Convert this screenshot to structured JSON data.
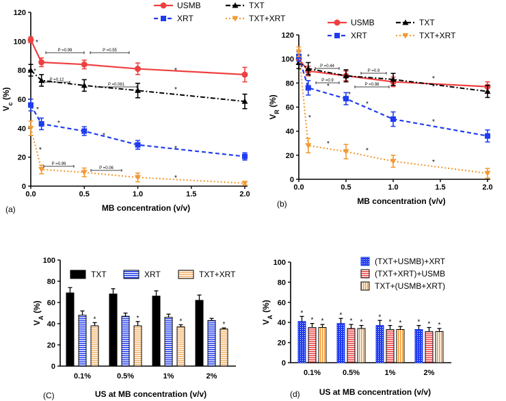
{
  "colors": {
    "red": "#ee4040",
    "black": "#000000",
    "blue": "#1f3cf0",
    "orange": "#f29a33",
    "light_orange": "#f7c184"
  },
  "chart_data": [
    {
      "panel": "(a)",
      "type": "line",
      "xlabel": "MB concentration (v/v)",
      "ylabel": "Vc (%)",
      "xlim": [
        0,
        2
      ],
      "ylim": [
        0,
        120
      ],
      "xticks": [
        "0.0",
        "0.5",
        "1.0",
        "1.5",
        "2.0"
      ],
      "yticks": [
        "0",
        "20",
        "40",
        "60",
        "80",
        "100",
        "120"
      ],
      "x": [
        0,
        0.1,
        0.5,
        1.0,
        2.0
      ],
      "series": [
        {
          "name": "USMB",
          "values": [
            101,
            85.5,
            84,
            81,
            77
          ],
          "err": [
            2,
            3,
            3,
            4,
            5
          ]
        },
        {
          "name": "TXT",
          "values": [
            80,
            73,
            69.5,
            66,
            58.5
          ],
          "err": [
            4,
            4,
            4,
            5,
            5
          ]
        },
        {
          "name": "XRT",
          "values": [
            56,
            43,
            38,
            28.5,
            20.5
          ],
          "err": [
            4,
            4,
            3,
            3,
            2.5
          ]
        },
        {
          "name": "TXT+XRT",
          "values": [
            40,
            11.5,
            9.5,
            6,
            2
          ],
          "err": [
            5,
            3,
            3,
            3,
            1
          ]
        }
      ],
      "annotations": [
        "P =0.99",
        "P =0.55",
        "P =0.12",
        "P =0.081",
        "P =0.99",
        "P =0.06"
      ]
    },
    {
      "panel": "(b)",
      "type": "line",
      "xlabel": "MB concentration (v/v)",
      "ylabel": "VR (%)",
      "xlim": [
        0,
        2
      ],
      "ylim": [
        0,
        120
      ],
      "xticks": [
        "0.0",
        "0.5",
        "1.0",
        "1.5",
        "2.0"
      ],
      "yticks": [
        "0",
        "20",
        "40",
        "60",
        "80",
        "100",
        "120"
      ],
      "x": [
        0,
        0.1,
        0.5,
        1.0,
        2.0
      ],
      "series": [
        {
          "name": "USMB",
          "values": [
            100,
            90,
            86,
            81,
            77
          ],
          "err": [
            4,
            4,
            4,
            4,
            4
          ]
        },
        {
          "name": "TXT",
          "values": [
            97,
            92,
            86,
            83,
            73
          ],
          "err": [
            5,
            5,
            5,
            5,
            5
          ]
        },
        {
          "name": "XRT",
          "values": [
            102,
            76,
            67,
            50,
            36
          ],
          "err": [
            4,
            6,
            5,
            6,
            5
          ]
        },
        {
          "name": "TXT+XRT",
          "values": [
            106,
            28,
            23,
            15,
            5
          ],
          "err": [
            4,
            6,
            6,
            5,
            4
          ]
        }
      ],
      "annotations": [
        "P =0.44",
        "P =0.9",
        "P =0.9",
        "P =0.98"
      ]
    },
    {
      "panel": "(C)",
      "type": "bar",
      "xlabel": "US at MB concentration (v/v)",
      "ylabel": "VA (%)",
      "ylim": [
        0,
        100
      ],
      "yticks": [
        "0",
        "20",
        "40",
        "60",
        "80",
        "100"
      ],
      "categories": [
        "0.1%",
        "0.5%",
        "1%",
        "2%"
      ],
      "series": [
        {
          "name": "TXT",
          "values": [
            69,
            68,
            66,
            62
          ],
          "err": [
            5,
            5,
            5,
            5
          ]
        },
        {
          "name": "XRT",
          "values": [
            48,
            47,
            46,
            43
          ],
          "err": [
            4,
            3,
            3,
            2
          ]
        },
        {
          "name": "TXT+XRT",
          "values": [
            38,
            38,
            37,
            35
          ],
          "err": [
            3,
            4,
            2,
            1
          ]
        }
      ]
    },
    {
      "panel": "(d)",
      "type": "bar",
      "xlabel": "US at MB concentration (v/v)",
      "ylabel": "VA (%)",
      "ylim": [
        0,
        100
      ],
      "yticks": [
        "0",
        "20",
        "40",
        "60",
        "80",
        "100"
      ],
      "categories": [
        "0.1%",
        "0.5%",
        "1%",
        "2%"
      ],
      "series": [
        {
          "name": "(TXT+USMB)+XRT",
          "values": [
            41,
            39,
            37,
            33
          ],
          "err": [
            5,
            5,
            5,
            4
          ]
        },
        {
          "name": "(TXT+XRT)+USMB",
          "values": [
            35,
            34,
            33,
            31
          ],
          "err": [
            4,
            4,
            4,
            4
          ]
        },
        {
          "name": "TXT+(USMB+XRT)",
          "values": [
            35,
            34,
            33,
            31
          ],
          "err": [
            3,
            3,
            3,
            3
          ]
        }
      ]
    }
  ]
}
